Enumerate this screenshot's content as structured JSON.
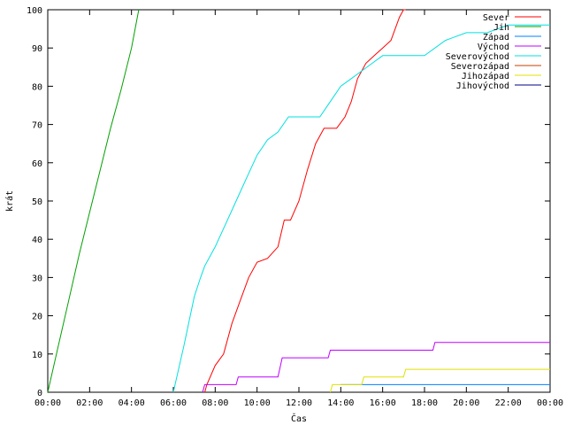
{
  "chart_data": {
    "type": "line",
    "xlabel": "Čas",
    "ylabel": "krát",
    "xlim": [
      0,
      24
    ],
    "ylim": [
      0,
      100
    ],
    "x_ticks": [
      0,
      2,
      4,
      6,
      8,
      10,
      12,
      14,
      16,
      18,
      20,
      22,
      24
    ],
    "x_tick_labels": [
      "00:00",
      "02:00",
      "04:00",
      "06:00",
      "08:00",
      "10:00",
      "12:00",
      "14:00",
      "16:00",
      "18:00",
      "20:00",
      "22:00",
      "00:00"
    ],
    "y_ticks": [
      0,
      10,
      20,
      30,
      40,
      50,
      60,
      70,
      80,
      90,
      100
    ],
    "y_tick_labels": [
      "0",
      "10",
      "20",
      "30",
      "40",
      "50",
      "60",
      "70",
      "80",
      "90",
      "100"
    ],
    "legend_position": "top-right",
    "grid": false,
    "series": [
      {
        "name": "Sever",
        "color": "#ff0000",
        "x": [
          7.5,
          7.6,
          8.0,
          8.4,
          8.8,
          9.2,
          9.6,
          10.0,
          10.5,
          11.0,
          11.3,
          11.6,
          12.0,
          12.4,
          12.8,
          13.2,
          13.8,
          14.2,
          14.5,
          14.8,
          15.2,
          15.6,
          16.0,
          16.4,
          16.8,
          17.0,
          17.1
        ],
        "y": [
          0,
          2,
          7,
          10,
          18,
          24,
          30,
          34,
          35,
          38,
          45,
          45,
          50,
          58,
          65,
          69,
          69,
          72,
          76,
          82,
          86,
          88,
          90,
          92,
          98,
          100,
          100
        ]
      },
      {
        "name": "Jih",
        "color": "#00a000",
        "x": [
          0,
          0.5,
          1.0,
          1.5,
          2.0,
          2.5,
          3.0,
          3.5,
          4.0,
          4.35
        ],
        "y": [
          0,
          12,
          24,
          36,
          47,
          58,
          69,
          79,
          90,
          100
        ]
      },
      {
        "name": "Západ",
        "color": "#0080ff",
        "x": [
          14.0,
          16.0,
          18.0,
          20.0,
          24.0
        ],
        "y": [
          2,
          2,
          2,
          2,
          2
        ]
      },
      {
        "name": "Východ",
        "color": "#c000ff",
        "x": [
          7.4,
          7.5,
          9.0,
          9.1,
          10.0,
          11.0,
          11.2,
          13.4,
          13.5,
          18.4,
          18.5,
          24.0
        ],
        "y": [
          0,
          2,
          2,
          4,
          4,
          4,
          9,
          9,
          11,
          11,
          13,
          13
        ]
      },
      {
        "name": "Severovýchod",
        "color": "#00e0e0",
        "x": [
          6.0,
          6.5,
          7.0,
          7.3,
          7.5,
          8.0,
          8.5,
          9.0,
          9.5,
          10.0,
          10.5,
          11.0,
          11.5,
          12.0,
          13.0,
          13.5,
          14.0,
          14.5,
          15.0,
          15.5,
          16.0,
          17.0,
          18.0,
          19.0,
          20.0,
          21.0,
          22.0,
          24.0
        ],
        "y": [
          0,
          12,
          25,
          30,
          33,
          38,
          44,
          50,
          56,
          62,
          66,
          68,
          72,
          72,
          72,
          76,
          80,
          82,
          84,
          86,
          88,
          88,
          88,
          92,
          94,
          94,
          96,
          96
        ]
      },
      {
        "name": "Severozápad",
        "color": "#c04000",
        "x": [],
        "y": []
      },
      {
        "name": "Jihozápad",
        "color": "#e0e000",
        "x": [
          13.5,
          13.6,
          15.0,
          15.1,
          17.0,
          17.1,
          24.0
        ],
        "y": [
          0,
          2,
          2,
          4,
          4,
          6,
          6
        ]
      },
      {
        "name": "Jihovýchod",
        "color": "#000080",
        "x": [],
        "y": []
      }
    ]
  }
}
